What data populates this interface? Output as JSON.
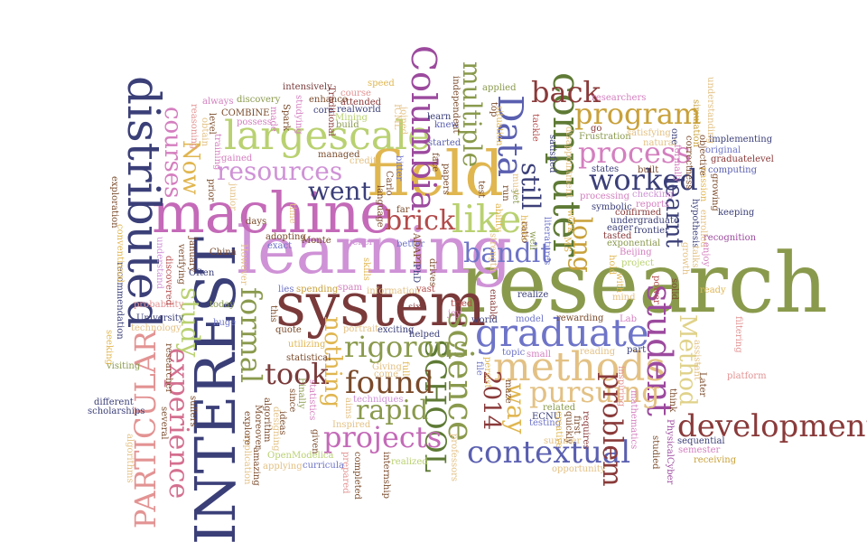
{
  "palette": {
    "navy": "#3b3f78",
    "indigo": "#5a5fb0",
    "purple": "#9c4a9e",
    "pink": "#d47fbf",
    "lilac": "#cf92d6",
    "mustard": "#e0b650",
    "olive": "#8a9a4d",
    "lightgreen": "#b9d171",
    "darkgreen": "#5e7a35",
    "maroon": "#8a3a3a",
    "brick": "#b34a4a",
    "salmon": "#e39393",
    "sand": "#e3c184",
    "lightsand": "#eeda9c",
    "blueviolet": "#6e74c7"
  },
  "words": {
    "research": "research",
    "learning": "learning",
    "INTEREST": "INTEREST",
    "machine": "machine",
    "system": "system",
    "field": "field",
    "distributed": "distributed",
    "largescale": "largescale",
    "computer": "computer",
    "PARTICULAR": "PARTICULAR",
    "methods": "methods",
    "development": "development",
    "graduate": "graduate",
    "student": "student",
    "Columbia": "Columbia",
    "science": "science",
    "SCHOOL": "SCHOOL",
    "Data": "Data",
    "program": "program",
    "process": "process",
    "worked": "worked",
    "like": "like",
    "formal": "formal",
    "projects": "projects",
    "contextual": "contextual",
    "rigorous": "rigorous",
    "pursuing": "pursuing",
    "experience": "experience",
    "found": "found",
    "back": "back",
    "courses": "courses",
    "study": "study",
    "Now": "Now",
    "went": "went",
    "resources": "resources",
    "bandit": "bandit",
    "brick": "brick",
    "problem": "problem",
    "Method": "Method",
    "took": "took",
    "rapid": "rapid",
    "nothing": "nothing",
    "still": "still",
    "multiple": "multiple",
    "long": "long",
    "learnt": "learnt",
    "way": "way",
    "y2014": "2014",
    "intensively": "intensively",
    "speed": "speed",
    "applied": "applied",
    "researchers": "researchers",
    "discovery": "discovery",
    "always": "always",
    "COMBINE": "COMBINE",
    "possess": "possess",
    "course": "course",
    "attended": "attended",
    "realworld": "realworld",
    "Traditional": "Traditional",
    "Mining": "Mining",
    "build": "build",
    "core": "core",
    "ICML": "ICML",
    "joined": "joined",
    "knew": "knew",
    "learn": "learn",
    "started": "started",
    "face": "face",
    "papers": "papers",
    "independent": "independent",
    "top": "top",
    "situation": "situation",
    "test": "test",
    "run": "run",
    "must": "must",
    "yet": "yet",
    "tackle": "tackle",
    "satisfied": "satisfied",
    "go": "go",
    "Frustration": "Frustration",
    "satisfying": "satisfying",
    "natural": "natural",
    "one": "one",
    "formally": "formally",
    "correctness": "correctness",
    "simulation": "simulation",
    "passion": "passion",
    "objective": "objective",
    "implementing": "implementing",
    "original": "original",
    "graduatelevel": "graduatelevel",
    "computing": "computing",
    "growing": "growing",
    "keeping": "keeping",
    "recognition": "recognition",
    "enjoy": "enjoy",
    "talks": "talks",
    "ready": "ready",
    "filtering": "filtering",
    "platform": "platform",
    "understanding": "understanding",
    "Later": "Later",
    "think": "think",
    "assistant": "assistant",
    "mathematics": "mathematics",
    "studied": "studied",
    "PhysicalCyber": "PhysicalCyber",
    "sequential": "sequential",
    "semester": "semester",
    "receiving": "receiving",
    "reading": "reading",
    "part": "part",
    "mind": "mind",
    "Lab": "Lab",
    "rewarding": "rewarding",
    "gained": "gained",
    "training": "training",
    "reasoning": "reasoning",
    "made": "made",
    "Spark": "Spark",
    "studying": "studying",
    "junior": "junior",
    "prior": "prior",
    "exploration": "exploration",
    "conventional": "conventional",
    "understand": "understand",
    "verifying": "verifying",
    "January": "January",
    "Often": "Often",
    "discovered": "discovered",
    "China": "China",
    "probability": "probability",
    "recommendation": "recommendation",
    "University": "University",
    "technology": "technology",
    "seeking": "seeking",
    "visiting": "visiting",
    "different": "different",
    "scholarships": "scholarships",
    "several": "several",
    "suffers": "suffers",
    "researcher": "researcher",
    "algorithms": "algorithms",
    "today": "today",
    "huge": "huge",
    "days": "days",
    "However": "However",
    "exact": "exact",
    "adopting": "adopting",
    "Monte": "Monte",
    "Carlo": "Carlo",
    "time": "time",
    "general": "general",
    "better": "better",
    "bitter": "bitter",
    "language": "language",
    "far": "far",
    "managed": "managed",
    "credit": "credit",
    "enhance": "enhance",
    "this": "this",
    "quote": "quote",
    "lies": "lies",
    "spending": "spending",
    "spam": "spam",
    "information": "information",
    "vast": "vast",
    "utilizing": "utilizing",
    "statistical": "statistical",
    "Finally": "Finally",
    "statistics": "statistics",
    "since": "since",
    "ideas": "ideas",
    "algorithm": "algorithm",
    "designing": "designing",
    "OpenModelica": "OpenModelica",
    "applying": "applying",
    "curricula": "curricula",
    "given": "given",
    "application": "application",
    "explore": "explore",
    "Moreover": "Moreover",
    "amazing": "amazing",
    "Inspired": "Inspired",
    "prepared": "prepared",
    "completed": "completed",
    "internship": "internship",
    "aims": "aims",
    "realized": "realized",
    "Giving": "Giving",
    "come": "come",
    "techniques": "techniques",
    "exciting": "exciting",
    "helped": "helped",
    "portrait": "portrait",
    "skills": "skills",
    "six": "six",
    "PhD": "PhD",
    "drives": "drives",
    "full": "full",
    "professors": "professors",
    "joy": "joy",
    "tried": "tried",
    "persist": "persist",
    "enable": "enable",
    "file": "file",
    "maze": "maze",
    "world": "world",
    "realize": "realize",
    "model": "model",
    "topic": "topic",
    "small": "small",
    "related": "related",
    "ECNU": "ECNU",
    "testing": "testing",
    "summer": "summer",
    "opportunity": "opportunity",
    "creative": "creative",
    "quickly": "quickly",
    "first": "first",
    "requires": "requires",
    "inspiring": "inspiring",
    "strength": "strength",
    "well": "well",
    "ratio": "ratio",
    "hours": "hours",
    "ability": "ability",
    "literatures": "literatures",
    "MS": "MS",
    "work": "work",
    "ADAPT": "ADAPT",
    "disappointment": "disappointment",
    "processing": "processing",
    "states": "states",
    "symbolic": "symbolic",
    "confirmed": "confirmed",
    "undergraduate": "undergraduate",
    "eager": "eager",
    "tasted": "tasted",
    "Beijing": "Beijing",
    "project": "project",
    "exponential": "exponential",
    "frontier": "frontier",
    "checking": "checking",
    "reports": "reports",
    "built": "built",
    "hold": "hold",
    "with": "with",
    "power": "power",
    "solid": "solid",
    "growth": "growth",
    "hypothesis": "hypothesis",
    "enrolled": "enrolled",
    "level": "level",
    "obtain": "obtain"
  }
}
